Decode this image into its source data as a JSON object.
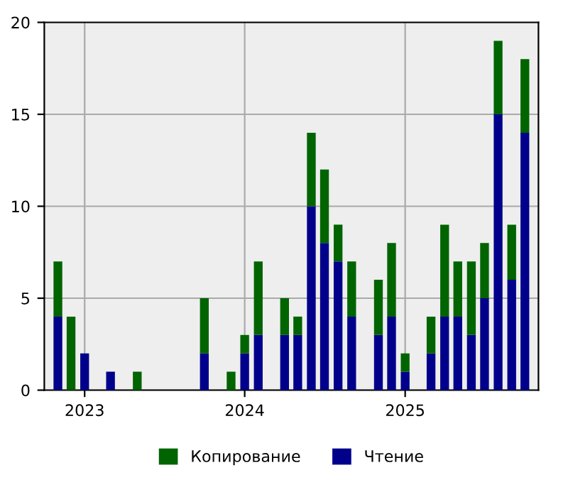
{
  "chart_data": {
    "type": "bar",
    "stacked": true,
    "x": [
      "2022-11",
      "2022-12",
      "2023-01",
      "2023-03",
      "2023-05",
      "2023-10",
      "2023-12",
      "2024-01",
      "2024-02",
      "2024-04",
      "2024-05",
      "2024-06",
      "2024-07",
      "2024-08",
      "2024-09",
      "2024-11",
      "2024-12",
      "2025-01",
      "2025-03",
      "2025-04",
      "2025-05",
      "2025-06",
      "2025-07",
      "2025-08",
      "2025-09",
      "2025-10"
    ],
    "series": [
      {
        "name": "Чтение",
        "color": "#00008b",
        "values": [
          4,
          0,
          2,
          1,
          0,
          2,
          0,
          2,
          3,
          3,
          3,
          10,
          8,
          7,
          4,
          3,
          4,
          1,
          2,
          4,
          4,
          3,
          5,
          15,
          6,
          14
        ]
      },
      {
        "name": "Копирование",
        "color": "#006400",
        "values": [
          3,
          4,
          0,
          0,
          1,
          3,
          1,
          1,
          4,
          2,
          1,
          4,
          4,
          2,
          3,
          3,
          4,
          1,
          2,
          5,
          3,
          4,
          3,
          4,
          3,
          4
        ]
      }
    ],
    "xlim": [
      "2022-10-01",
      "2025-11-01"
    ],
    "xticks": [
      {
        "value": "2023-01-01",
        "label": "2023"
      },
      {
        "value": "2024-01-01",
        "label": "2024"
      },
      {
        "value": "2025-01-01",
        "label": "2025"
      }
    ],
    "ylim": [
      0,
      20
    ],
    "yticks": [
      0,
      5,
      10,
      15,
      20
    ],
    "grid": true,
    "legend": "bottom"
  }
}
